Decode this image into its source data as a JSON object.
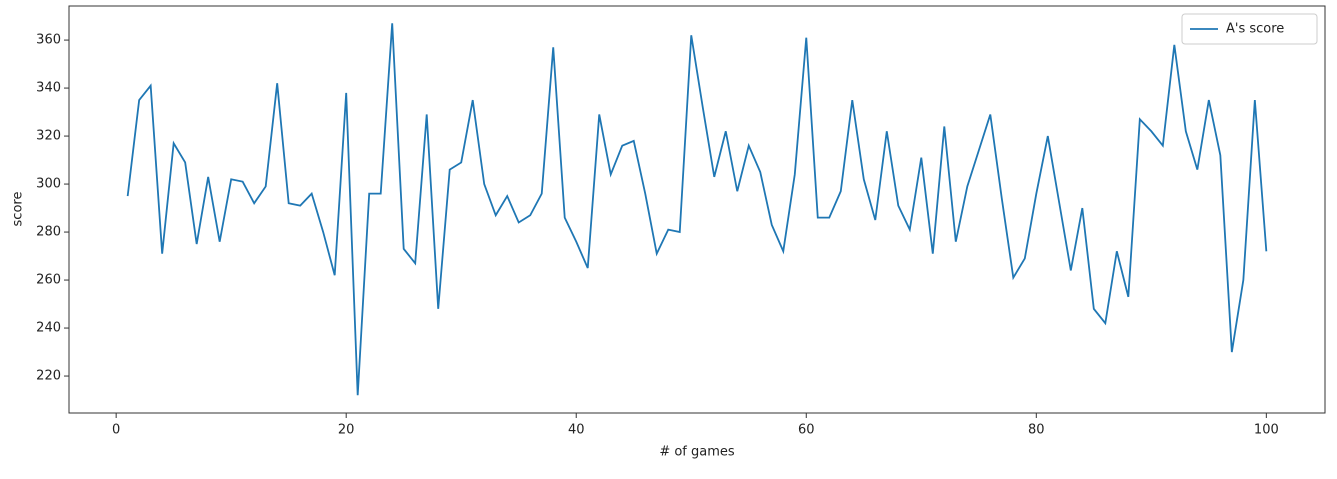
{
  "chart_data": {
    "type": "line",
    "xlabel": "# of games",
    "ylabel": "score",
    "x": [
      1,
      2,
      3,
      4,
      5,
      6,
      7,
      8,
      9,
      10,
      11,
      12,
      13,
      14,
      15,
      16,
      17,
      18,
      19,
      20,
      21,
      22,
      23,
      24,
      25,
      26,
      27,
      28,
      29,
      30,
      31,
      32,
      33,
      34,
      35,
      36,
      37,
      38,
      39,
      40,
      41,
      42,
      43,
      44,
      45,
      46,
      47,
      48,
      49,
      50,
      51,
      52,
      53,
      54,
      55,
      56,
      57,
      58,
      59,
      60,
      61,
      62,
      63,
      64,
      65,
      66,
      67,
      68,
      69,
      70,
      71,
      72,
      73,
      74,
      75,
      76,
      77,
      78,
      79,
      80,
      81,
      82,
      83,
      84,
      85,
      86,
      87,
      88,
      89,
      90,
      91,
      92,
      93,
      94,
      95,
      96,
      97,
      98,
      99,
      100
    ],
    "series": [
      {
        "name": "A's score",
        "color": "#1f77b4",
        "values": [
          295,
          335,
          341,
          271,
          317,
          309,
          275,
          303,
          276,
          302,
          301,
          292,
          299,
          342,
          292,
          291,
          296,
          280,
          262,
          338,
          212,
          296,
          296,
          367,
          273,
          267,
          329,
          248,
          306,
          309,
          335,
          300,
          287,
          295,
          284,
          287,
          296,
          357,
          286,
          276,
          265,
          329,
          304,
          316,
          318,
          296,
          271,
          281,
          280,
          362,
          332,
          303,
          322,
          297,
          316,
          305,
          283,
          272,
          304,
          361,
          286,
          286,
          297,
          335,
          302,
          285,
          322,
          291,
          281,
          311,
          271,
          324,
          276,
          299,
          314,
          329,
          294,
          261,
          269,
          296,
          320,
          292,
          264,
          290,
          248,
          242,
          272,
          253,
          327,
          322,
          316,
          358,
          322,
          306,
          335,
          312,
          230,
          260,
          335,
          272
        ]
      }
    ],
    "xlim": [
      -4.1,
      105.1
    ],
    "ylim": [
      204.6,
      374.2
    ],
    "xticks": [
      0,
      20,
      40,
      60,
      80,
      100
    ],
    "yticks": [
      220,
      240,
      260,
      280,
      300,
      320,
      340,
      360
    ],
    "legend": "upper right"
  }
}
